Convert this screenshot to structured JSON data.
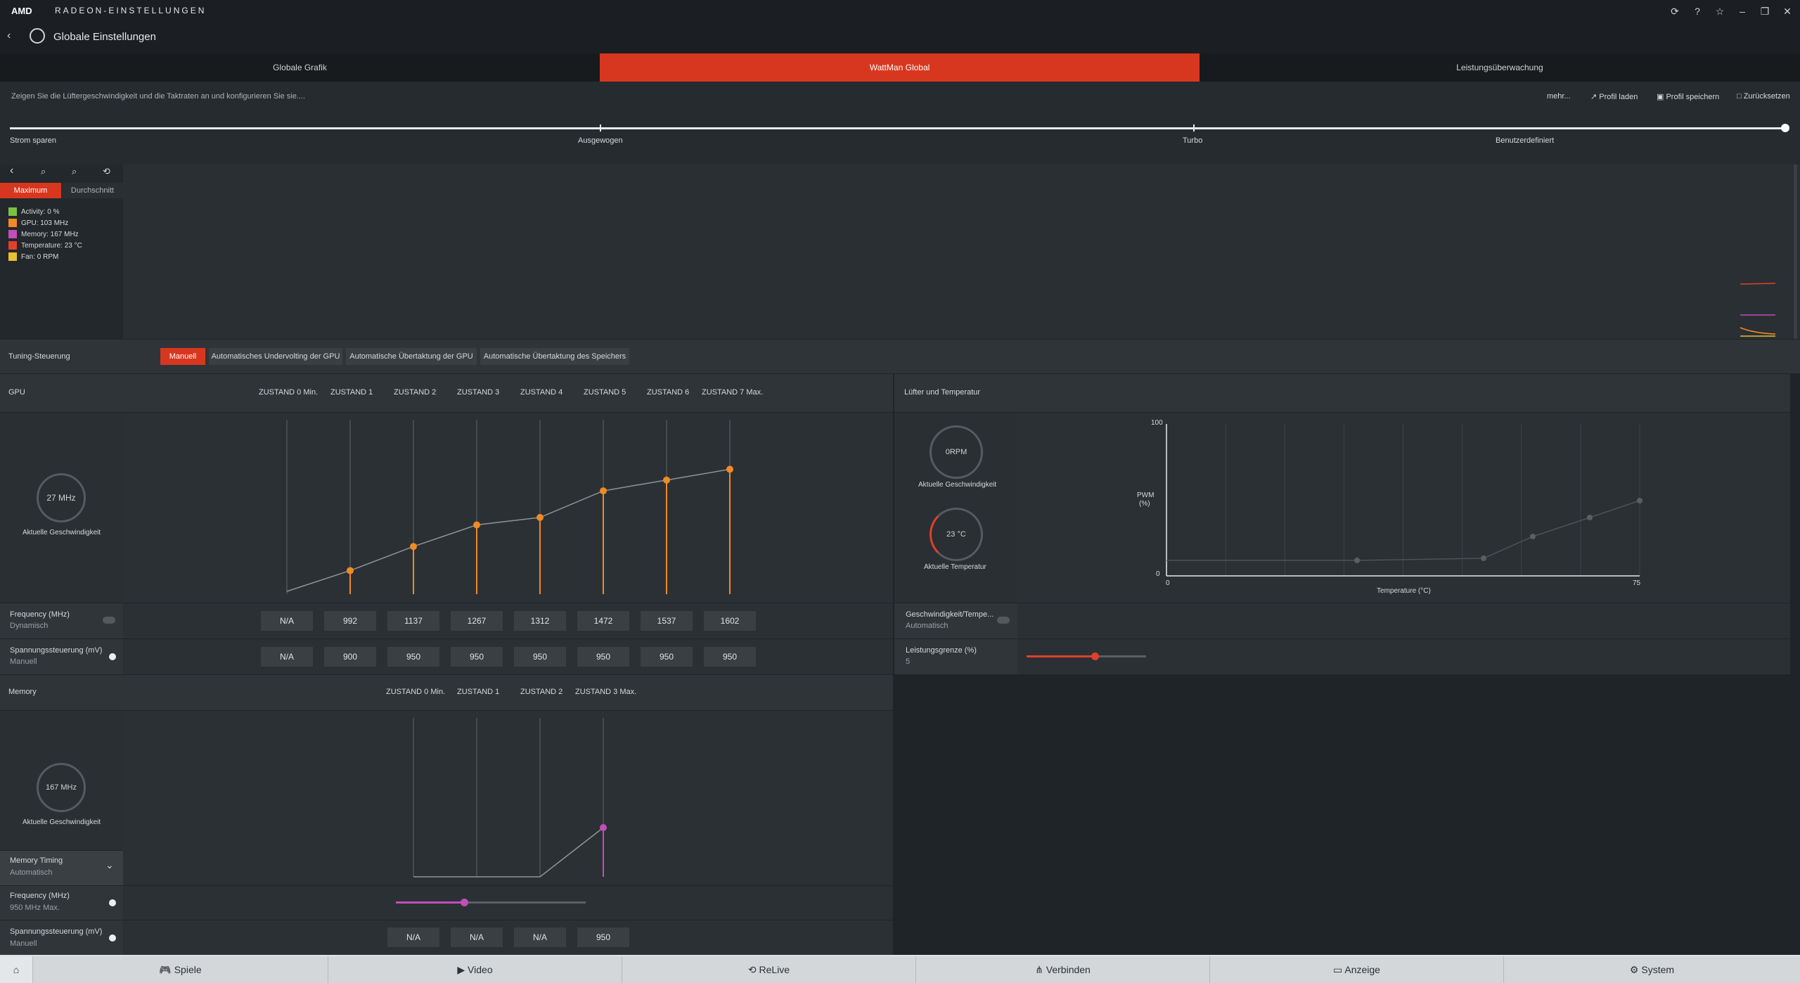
{
  "app": {
    "brand": "AMD",
    "title": "RADEON-EINSTELLUNGEN",
    "page_title": "Globale Einstellungen"
  },
  "tabs": [
    {
      "label": "Globale Grafik"
    },
    {
      "label": "WattMan Global"
    },
    {
      "label": "Leistungsüberwachung"
    }
  ],
  "description": "Zeigen Sie die Lüftergeschwindigkeit und die Taktraten an und konfigurieren Sie sie....",
  "actions": {
    "more": "mehr...",
    "load": "Profil laden",
    "save": "Profil speichern",
    "reset": "Zurücksetzen"
  },
  "presets": [
    "Strom sparen",
    "Ausgewogen",
    "Turbo",
    "Benutzerdefiniert"
  ],
  "graph": {
    "mode_max": "Maximum",
    "mode_avg": "Durchschnitt",
    "legend": [
      {
        "label": "Activity: 0 %",
        "color": "#7cc242"
      },
      {
        "label": "GPU: 103 MHz",
        "color": "#f08a24"
      },
      {
        "label": "Memory: 167 MHz",
        "color": "#c04fb8"
      },
      {
        "label": "Temperature: 23 °C",
        "color": "#e0402a"
      },
      {
        "label": "Fan: 0 RPM",
        "color": "#e8c030"
      }
    ]
  },
  "tuning": {
    "label": "Tuning-Steuerung",
    "buttons": [
      "Manuell",
      "Automatisches Undervolting der GPU",
      "Automatische Übertaktung der GPU",
      "Automatische Übertaktung des Speichers"
    ]
  },
  "gpu": {
    "label": "GPU",
    "gauge_value": "27 MHz",
    "gauge_label": "Aktuelle Geschwindigkeit",
    "states": [
      "ZUSTAND 0 Min.",
      "ZUSTAND 1",
      "ZUSTAND 2",
      "ZUSTAND 3",
      "ZUSTAND 4",
      "ZUSTAND 5",
      "ZUSTAND 6",
      "ZUSTAND 7 Max."
    ],
    "freq_label": "Frequency (MHz)",
    "freq_sub": "Dynamisch",
    "frequencies": [
      "N/A",
      "992",
      "1137",
      "1267",
      "1312",
      "1472",
      "1537",
      "1602"
    ],
    "volt_label": "Spannungssteuerung (mV)",
    "volt_sub": "Manuell",
    "voltages": [
      "N/A",
      "900",
      "950",
      "950",
      "950",
      "950",
      "950",
      "950"
    ]
  },
  "fan": {
    "label": "Lüfter und Temperatur",
    "speed_value": "0RPM",
    "speed_label": "Aktuelle Geschwindigkeit",
    "temp_value": "23 °C",
    "temp_label": "Aktuelle Temperatur",
    "y_label_1": "PWM",
    "y_label_2": "(%)",
    "y_max": "100",
    "y_min": "0",
    "x_min": "0",
    "x_max": "75",
    "x_label": "Temperature (°C)",
    "mode_label": "Geschwindigkeit/Tempe...",
    "mode_sub": "Automatisch",
    "power_label": "Leistungsgrenze (%)",
    "power_value": "5"
  },
  "memory": {
    "label": "Memory",
    "gauge_value": "167 MHz",
    "gauge_label": "Aktuelle Geschwindigkeit",
    "states": [
      "ZUSTAND 0 Min.",
      "ZUSTAND 1",
      "ZUSTAND 2",
      "ZUSTAND 3 Max."
    ],
    "timing_label": "Memory Timing",
    "timing_sub": "Automatisch",
    "freq_label": "Frequency (MHz)",
    "freq_sub": "950 MHz Max.",
    "volt_label": "Spannungssteuerung (mV)",
    "volt_sub": "Manuell",
    "voltages": [
      "N/A",
      "N/A",
      "N/A",
      "950"
    ]
  },
  "nav": [
    "Spiele",
    "Video",
    "ReLive",
    "Verbinden",
    "Anzeige",
    "System"
  ],
  "colors": {
    "accent": "#d8371f",
    "gpu_curve": "#f08a24",
    "mem_curve": "#c04fb8"
  }
}
